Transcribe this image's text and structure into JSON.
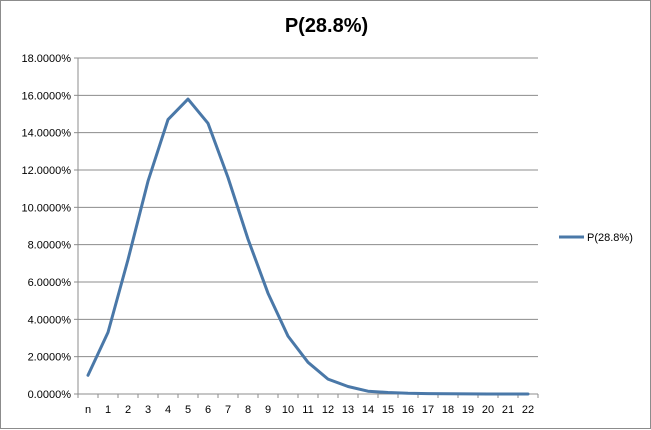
{
  "chart_data": {
    "type": "line",
    "title": "P(28.8%)",
    "xlabel": "",
    "ylabel": "",
    "categories": [
      "n",
      "1",
      "2",
      "3",
      "4",
      "5",
      "6",
      "7",
      "8",
      "9",
      "10",
      "11",
      "12",
      "13",
      "14",
      "15",
      "16",
      "17",
      "18",
      "19",
      "20",
      "21",
      "22"
    ],
    "series": [
      {
        "name": "P(28.8%)",
        "color": "#4a78a8",
        "values": [
          1.0,
          3.3,
          7.2,
          11.4,
          14.7,
          15.8,
          14.5,
          11.6,
          8.3,
          5.4,
          3.1,
          1.7,
          0.8,
          0.4,
          0.15,
          0.08,
          0.04,
          0.02,
          0.01,
          0.005,
          0.002,
          0.001,
          0.0005
        ]
      }
    ],
    "ylim": [
      0,
      18
    ],
    "yticks": [
      "0.0000%",
      "2.0000%",
      "4.0000%",
      "6.0000%",
      "8.0000%",
      "10.0000%",
      "12.0000%",
      "14.0000%",
      "16.0000%",
      "18.0000%"
    ],
    "grid": true,
    "legend": "right"
  }
}
